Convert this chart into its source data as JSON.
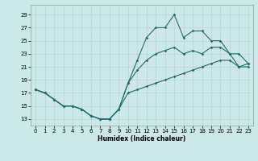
{
  "xlabel": "Humidex (Indice chaleur)",
  "xlim": [
    -0.5,
    23.5
  ],
  "ylim": [
    12.0,
    30.5
  ],
  "xticks": [
    0,
    1,
    2,
    3,
    4,
    5,
    6,
    7,
    8,
    9,
    10,
    11,
    12,
    13,
    14,
    15,
    16,
    17,
    18,
    19,
    20,
    21,
    22,
    23
  ],
  "yticks": [
    13,
    15,
    17,
    19,
    21,
    23,
    25,
    27,
    29
  ],
  "bg_color": "#cde8e8",
  "line_color": "#1e6b6b",
  "grid_color": "#b0d4d4",
  "line1_x": [
    0,
    1,
    2,
    3,
    4,
    5,
    6,
    7,
    8,
    9,
    10,
    11,
    12,
    13,
    14,
    15,
    16,
    17,
    18,
    19,
    20,
    21,
    22,
    23
  ],
  "line1_y": [
    17.5,
    17.0,
    16.0,
    15.0,
    15.0,
    14.5,
    13.5,
    13.0,
    13.0,
    14.5,
    18.5,
    22.0,
    25.5,
    27.0,
    27.0,
    29.0,
    25.5,
    26.5,
    26.5,
    25.0,
    25.0,
    23.0,
    21.0,
    21.0
  ],
  "line2_x": [
    0,
    1,
    2,
    3,
    4,
    5,
    6,
    7,
    8,
    9,
    10,
    11,
    12,
    13,
    14,
    15,
    16,
    17,
    18,
    19,
    20,
    21,
    22,
    23
  ],
  "line2_y": [
    17.5,
    17.0,
    16.0,
    15.0,
    15.0,
    14.5,
    13.5,
    13.0,
    13.0,
    14.5,
    18.5,
    20.5,
    22.0,
    23.0,
    23.5,
    24.0,
    23.0,
    23.5,
    23.0,
    24.0,
    24.0,
    23.0,
    23.0,
    21.5
  ],
  "line3_x": [
    0,
    1,
    2,
    3,
    4,
    5,
    6,
    7,
    8,
    9,
    10,
    11,
    12,
    13,
    14,
    15,
    16,
    17,
    18,
    19,
    20,
    21,
    22,
    23
  ],
  "line3_y": [
    17.5,
    17.0,
    16.0,
    15.0,
    15.0,
    14.5,
    13.5,
    13.0,
    13.0,
    14.5,
    17.0,
    17.5,
    18.0,
    18.5,
    19.0,
    19.5,
    20.0,
    20.5,
    21.0,
    21.5,
    22.0,
    22.0,
    21.0,
    21.5
  ],
  "marker_size": 1.8,
  "line_width": 0.8,
  "tick_fontsize": 5.0,
  "xlabel_fontsize": 5.5
}
